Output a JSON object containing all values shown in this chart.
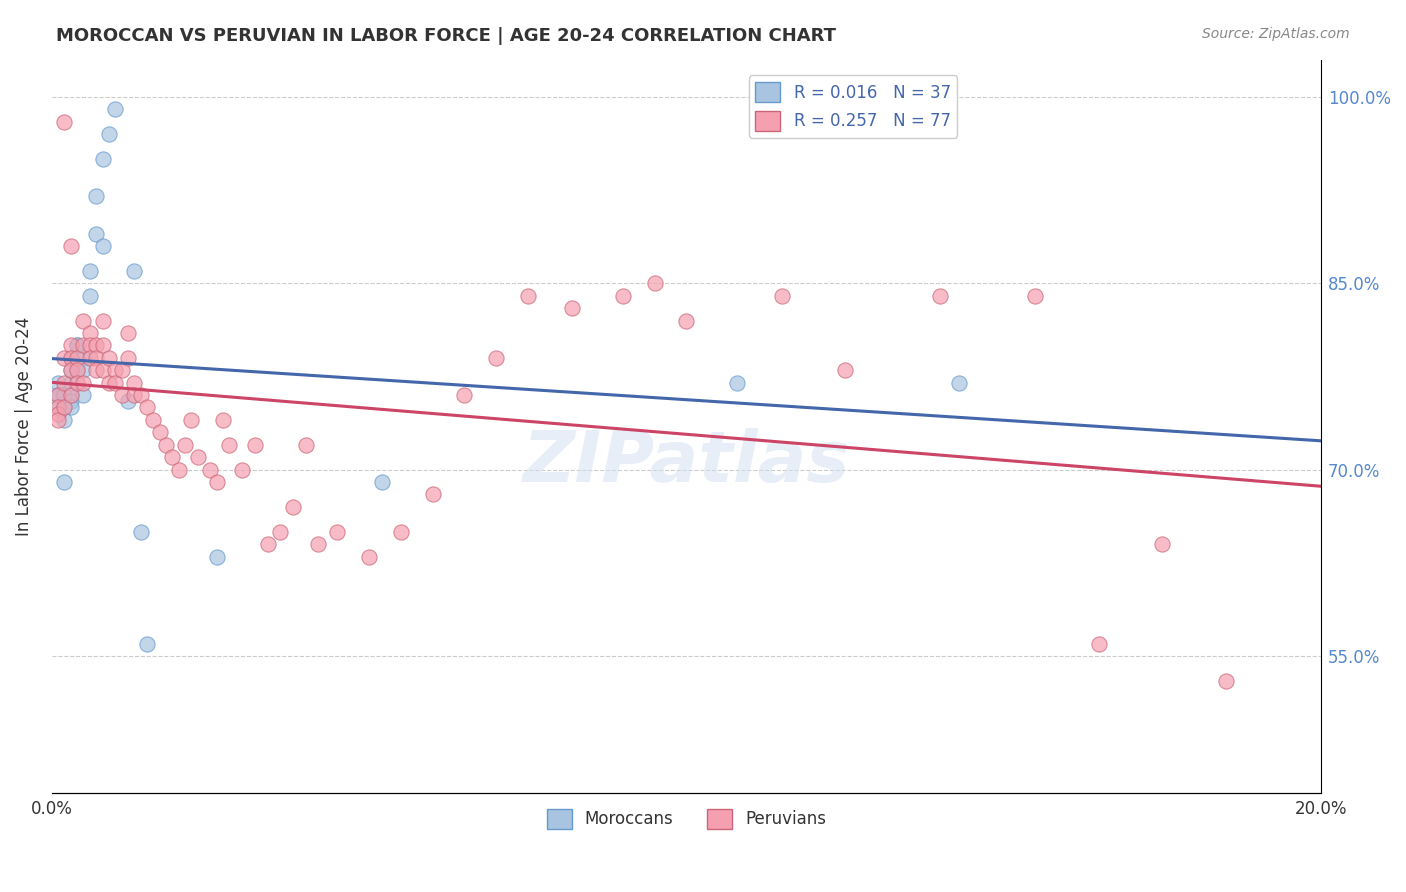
{
  "title": "MOROCCAN VS PERUVIAN IN LABOR FORCE | AGE 20-24 CORRELATION CHART",
  "source": "Source: ZipAtlas.com",
  "xlabel_bottom": "",
  "ylabel": "In Labor Force | Age 20-24",
  "xlim": [
    0.0,
    0.2
  ],
  "ylim": [
    0.44,
    1.03
  ],
  "xtick_labels": [
    "0.0%",
    "20.0%"
  ],
  "xtick_positions": [
    0.0,
    0.2
  ],
  "ytick_labels": [
    "55.0%",
    "70.0%",
    "85.0%",
    "100.0%"
  ],
  "ytick_positions": [
    0.55,
    0.7,
    0.85,
    1.0
  ],
  "legend_items": [
    {
      "label": "R = 0.016   N = 37",
      "color": "#a8c4e0"
    },
    {
      "label": "R = 0.257   N = 77",
      "color": "#f4a0b0"
    }
  ],
  "moroccan_x": [
    0.001,
    0.001,
    0.001,
    0.001,
    0.002,
    0.002,
    0.002,
    0.002,
    0.002,
    0.003,
    0.003,
    0.003,
    0.003,
    0.003,
    0.003,
    0.004,
    0.004,
    0.004,
    0.005,
    0.005,
    0.005,
    0.006,
    0.006,
    0.007,
    0.007,
    0.008,
    0.008,
    0.009,
    0.01,
    0.012,
    0.013,
    0.014,
    0.015,
    0.026,
    0.052,
    0.108,
    0.143
  ],
  "moroccan_y": [
    0.77,
    0.76,
    0.76,
    0.75,
    0.76,
    0.76,
    0.75,
    0.74,
    0.69,
    0.79,
    0.78,
    0.77,
    0.76,
    0.755,
    0.75,
    0.8,
    0.8,
    0.78,
    0.79,
    0.78,
    0.76,
    0.86,
    0.84,
    0.92,
    0.89,
    0.95,
    0.88,
    0.97,
    0.99,
    0.755,
    0.86,
    0.65,
    0.56,
    0.63,
    0.69,
    0.77,
    0.77
  ],
  "peruvian_x": [
    0.001,
    0.001,
    0.001,
    0.001,
    0.002,
    0.002,
    0.002,
    0.002,
    0.003,
    0.003,
    0.003,
    0.003,
    0.003,
    0.004,
    0.004,
    0.004,
    0.005,
    0.005,
    0.005,
    0.006,
    0.006,
    0.006,
    0.007,
    0.007,
    0.007,
    0.008,
    0.008,
    0.008,
    0.009,
    0.009,
    0.01,
    0.01,
    0.011,
    0.011,
    0.012,
    0.012,
    0.013,
    0.013,
    0.014,
    0.015,
    0.016,
    0.017,
    0.018,
    0.019,
    0.02,
    0.021,
    0.022,
    0.023,
    0.025,
    0.026,
    0.027,
    0.028,
    0.03,
    0.032,
    0.034,
    0.036,
    0.038,
    0.04,
    0.042,
    0.045,
    0.05,
    0.055,
    0.06,
    0.065,
    0.07,
    0.075,
    0.082,
    0.09,
    0.095,
    0.1,
    0.115,
    0.125,
    0.14,
    0.155,
    0.165,
    0.175,
    0.185
  ],
  "peruvian_y": [
    0.76,
    0.75,
    0.745,
    0.74,
    0.98,
    0.79,
    0.77,
    0.75,
    0.88,
    0.8,
    0.79,
    0.78,
    0.76,
    0.79,
    0.78,
    0.77,
    0.82,
    0.8,
    0.77,
    0.81,
    0.8,
    0.79,
    0.8,
    0.79,
    0.78,
    0.82,
    0.8,
    0.78,
    0.79,
    0.77,
    0.78,
    0.77,
    0.78,
    0.76,
    0.81,
    0.79,
    0.77,
    0.76,
    0.76,
    0.75,
    0.74,
    0.73,
    0.72,
    0.71,
    0.7,
    0.72,
    0.74,
    0.71,
    0.7,
    0.69,
    0.74,
    0.72,
    0.7,
    0.72,
    0.64,
    0.65,
    0.67,
    0.72,
    0.64,
    0.65,
    0.63,
    0.65,
    0.68,
    0.76,
    0.79,
    0.84,
    0.83,
    0.84,
    0.85,
    0.82,
    0.84,
    0.78,
    0.84,
    0.84,
    0.56,
    0.64,
    0.53
  ],
  "moroccan_color": "#a8c4e0",
  "moroccan_edge": "#6699cc",
  "peruvian_color": "#f4a0b0",
  "peruvian_edge": "#cc6677",
  "moroccan_line_color": "#4466aa",
  "peruvian_line_color": "#cc4466",
  "watermark": "ZIPatlas",
  "background_color": "#ffffff",
  "grid_color": "#cccccc"
}
